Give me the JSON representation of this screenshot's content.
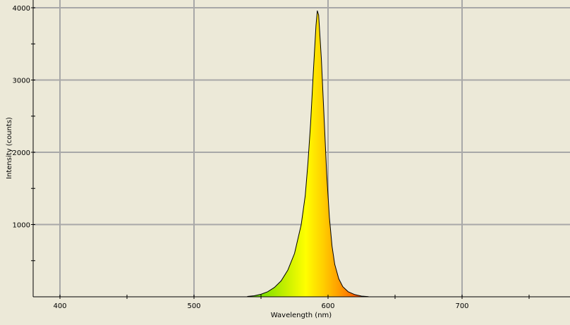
{
  "chart_data": {
    "type": "area",
    "title": "",
    "xlabel": "Wavelength (nm)",
    "ylabel": "Intensity (counts)",
    "xlim": [
      380,
      780
    ],
    "ylim": [
      0,
      4100
    ],
    "x_ticks": [
      400,
      500,
      600,
      700
    ],
    "y_ticks": [
      1000,
      2000,
      3000,
      4000
    ],
    "grid": true,
    "background": "#ece9d8",
    "grid_color": "#a8a8a8",
    "fill": "wavelength-colored gradient (green-yellow to orange-red)",
    "series": [
      {
        "x": [
          540,
          545,
          550,
          555,
          560,
          565,
          570,
          575,
          580,
          583,
          585,
          587,
          589,
          591,
          592,
          593,
          595,
          597,
          599,
          601,
          603,
          605,
          608,
          611,
          615,
          620,
          625,
          630
        ],
        "y": [
          5,
          15,
          35,
          70,
          130,
          220,
          370,
          600,
          1000,
          1400,
          1850,
          2400,
          3100,
          3750,
          3960,
          3900,
          3300,
          2500,
          1700,
          1100,
          700,
          450,
          250,
          140,
          70,
          30,
          10,
          3
        ]
      }
    ]
  }
}
